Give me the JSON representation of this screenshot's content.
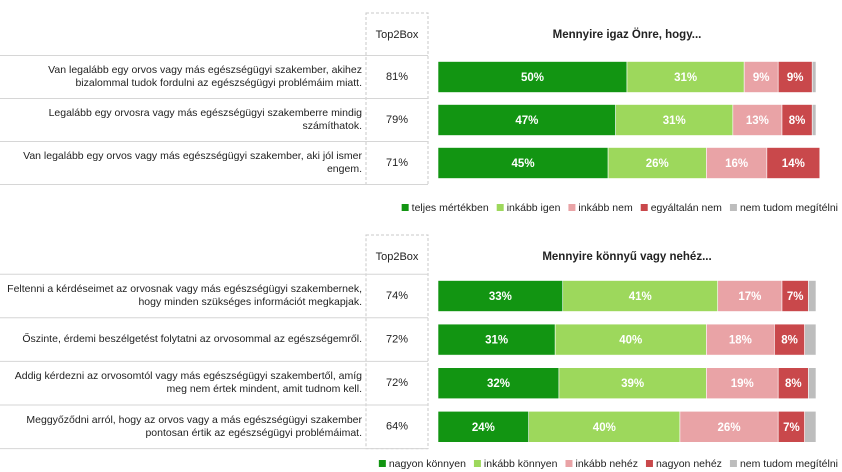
{
  "chart_data": [
    {
      "type": "stacked-bar",
      "title": "Mennyire igaz Önre, hogy...",
      "categories": [
        "Van legalább egy orvos vagy más egészségügyi szakember, akihez bizalommal tudok fordulni az egészségügyi problémáim miatt.",
        "Legalább egy orvosra vagy más egészségügyi szakemberre mindig számíthatok.",
        "Van legalább egy orvos vagy más egészségügyi szakember, aki jól ismer engem."
      ],
      "top2box": {
        "label": "Top2Box",
        "values": [
          81,
          79,
          71
        ],
        "value_labels": [
          "81%",
          "79%",
          "71%"
        ]
      },
      "xlim": [
        0,
        100
      ],
      "series": [
        {
          "name": "teljes mértékben",
          "color": "#129512",
          "values": [
            50,
            47,
            45
          ],
          "value_labels": [
            "50%",
            "47%",
            "45%"
          ]
        },
        {
          "name": "inkább igen",
          "color": "#9dd85c",
          "values": [
            31,
            31,
            26
          ],
          "value_labels": [
            "31%",
            "31%",
            "26%"
          ]
        },
        {
          "name": "inkább nem",
          "color": "#e9a3a6",
          "values": [
            9,
            13,
            16
          ],
          "value_labels": [
            "9%",
            "13%",
            "16%"
          ]
        },
        {
          "name": "egyáltalán nem",
          "color": "#c9484b",
          "values": [
            9,
            8,
            14
          ],
          "value_labels": [
            "9%",
            "8%",
            "14%"
          ]
        },
        {
          "name": "nem tudom megítélni",
          "color": "#bdbdbd",
          "values": [
            1,
            1,
            0
          ]
        }
      ]
    },
    {
      "type": "stacked-bar",
      "title": "Mennyire könnyű vagy nehéz...",
      "categories": [
        "Feltenni a kérdéseimet az orvosnak vagy más egészségügyi szakembernek, hogy minden szükséges információt megkapjak.",
        "Őszinte, érdemi beszélgetést folytatni az orvosommal az egészségemről.",
        "Addig kérdezni az orvosomtól vagy más egészségügyi szakembertől, amíg meg nem értek mindent, amit tudnom kell.",
        "Meggyőződni arról, hogy az orvos vagy a más egészségügyi szakember pontosan értik az egészségügyi problémáimat."
      ],
      "top2box": {
        "label": "Top2Box",
        "values": [
          74,
          72,
          72,
          64
        ],
        "value_labels": [
          "74%",
          "72%",
          "72%",
          "64%"
        ]
      },
      "xlim": [
        0,
        100
      ],
      "series": [
        {
          "name": "nagyon könnyen",
          "color": "#129512",
          "values": [
            33,
            31,
            32,
            24
          ],
          "value_labels": [
            "33%",
            "31%",
            "32%",
            "24%"
          ]
        },
        {
          "name": "inkább könnyen",
          "color": "#9dd85c",
          "values": [
            41,
            40,
            39,
            40
          ],
          "value_labels": [
            "41%",
            "40%",
            "39%",
            "40%"
          ]
        },
        {
          "name": "inkább nehéz",
          "color": "#e9a3a6",
          "values": [
            17,
            18,
            19,
            26
          ],
          "value_labels": [
            "17%",
            "18%",
            "19%",
            "26%"
          ]
        },
        {
          "name": "nagyon nehéz",
          "color": "#c9484b",
          "values": [
            7,
            8,
            8,
            7
          ],
          "value_labels": [
            "7%",
            "8%",
            "8%",
            "7%"
          ]
        },
        {
          "name": "nem tudom megítélni",
          "color": "#bdbdbd",
          "values": [
            2,
            3,
            2,
            3
          ]
        }
      ]
    }
  ]
}
